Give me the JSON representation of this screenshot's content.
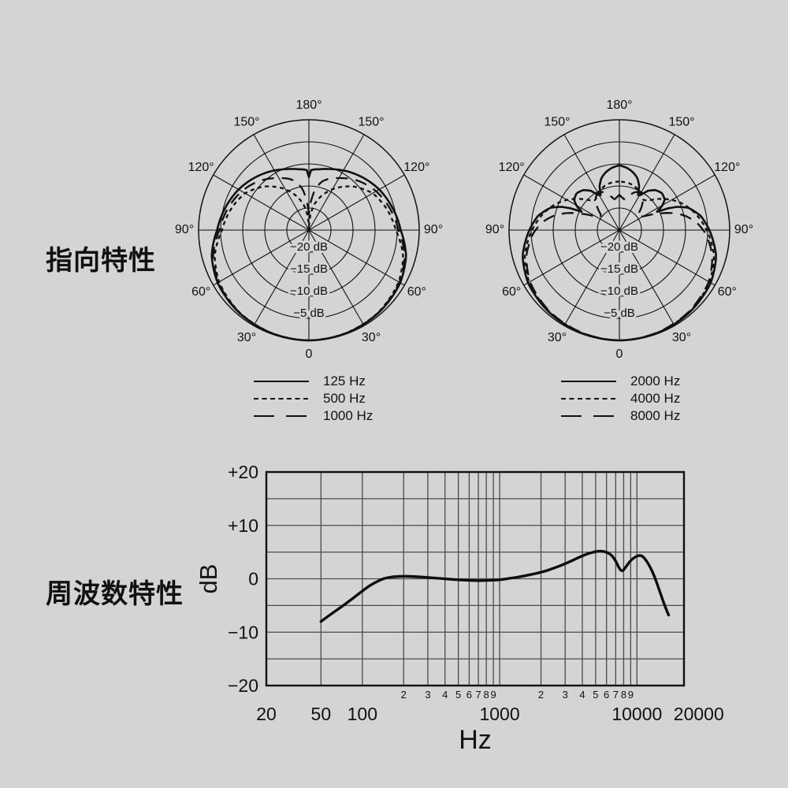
{
  "page": {
    "background": "#d4d4d5",
    "ink": "#111111"
  },
  "sections": {
    "directivity_heading": "指向特性",
    "frequency_heading": "周波数特性"
  },
  "chart_data": [
    {
      "type": "polar",
      "unit": "dB",
      "orientation": "0-degrees-at-bottom",
      "angle_labels": [
        "0",
        "30°",
        "60°",
        "90°",
        "120°",
        "150°",
        "180°"
      ],
      "grid_rings_db": [
        0,
        -5,
        -10,
        -15,
        -20
      ],
      "ring_labels": [
        {
          "db": -20,
          "label": "−20 dB"
        },
        {
          "db": -15,
          "label": "−15 dB"
        },
        {
          "db": -10,
          "label": "−10 dB"
        },
        {
          "db": -5,
          "label": "−5 dB"
        }
      ],
      "r_min_db": -25,
      "series": [
        {
          "name": "125 Hz",
          "dash": "solid",
          "points": [
            [
              0,
              0
            ],
            [
              20,
              -0.15
            ],
            [
              40,
              -0.5
            ],
            [
              60,
              -1.1
            ],
            [
              75,
              -2.2
            ],
            [
              90,
              -4.2
            ],
            [
              105,
              -5.4
            ],
            [
              120,
              -6.6
            ],
            [
              135,
              -8
            ],
            [
              150,
              -9.4
            ],
            [
              160,
              -10.3
            ],
            [
              170,
              -11
            ],
            [
              175,
              -11.2
            ],
            [
              178,
              -11.4
            ],
            [
              180,
              -13
            ]
          ]
        },
        {
          "name": "500 Hz",
          "dash": "dotted",
          "points": [
            [
              0,
              0
            ],
            [
              20,
              -0.2
            ],
            [
              40,
              -0.6
            ],
            [
              60,
              -1.5
            ],
            [
              75,
              -2.9
            ],
            [
              90,
              -5.3
            ],
            [
              105,
              -6.7
            ],
            [
              120,
              -8.3
            ],
            [
              135,
              -11
            ],
            [
              150,
              -14.3
            ],
            [
              160,
              -16.8
            ],
            [
              168,
              -19
            ],
            [
              174,
              -21.5
            ],
            [
              180,
              -25
            ]
          ]
        },
        {
          "name": "1000 Hz",
          "dash": "longdash",
          "points": [
            [
              0,
              0
            ],
            [
              20,
              -0.18
            ],
            [
              40,
              -0.55
            ],
            [
              60,
              -1.3
            ],
            [
              75,
              -2.5
            ],
            [
              90,
              -4.7
            ],
            [
              105,
              -6
            ],
            [
              120,
              -7.4
            ],
            [
              135,
              -9.2
            ],
            [
              150,
              -11.4
            ],
            [
              158,
              -12.4
            ],
            [
              165,
              -13.6
            ],
            [
              171,
              -15.5
            ],
            [
              176,
              -18.5
            ],
            [
              180,
              -21.5
            ]
          ]
        }
      ]
    },
    {
      "type": "polar",
      "unit": "dB",
      "orientation": "0-degrees-at-bottom",
      "angle_labels": [
        "0",
        "30°",
        "60°",
        "90°",
        "120°",
        "150°",
        "180°"
      ],
      "grid_rings_db": [
        0,
        -5,
        -10,
        -15,
        -20
      ],
      "ring_labels": [
        {
          "db": -20,
          "label": "−20 dB"
        },
        {
          "db": -15,
          "label": "−15 dB"
        },
        {
          "db": -10,
          "label": "−10 dB"
        },
        {
          "db": -5,
          "label": "−5 dB"
        }
      ],
      "r_min_db": -25,
      "series": [
        {
          "name": "2000 Hz",
          "dash": "solid",
          "points": [
            [
              0,
              0
            ],
            [
              20,
              -0.15
            ],
            [
              40,
              -0.5
            ],
            [
              60,
              -1.1
            ],
            [
              75,
              -2.3
            ],
            [
              90,
              -4.6
            ],
            [
              100,
              -6.3
            ],
            [
              108,
              -8.6
            ],
            [
              113,
              -11.5
            ],
            [
              116,
              -15.5
            ],
            [
              119,
              -14
            ],
            [
              124,
              -12.6
            ],
            [
              131,
              -12.2
            ],
            [
              138,
              -12.8
            ],
            [
              144,
              -14
            ],
            [
              149,
              -15.8
            ],
            [
              152,
              -16
            ],
            [
              156,
              -14
            ],
            [
              161,
              -12.5
            ],
            [
              167,
              -11.5
            ],
            [
              173,
              -10.8
            ],
            [
              180,
              -10.3
            ]
          ]
        },
        {
          "name": "4000 Hz",
          "dash": "dotted",
          "points": [
            [
              0,
              0
            ],
            [
              20,
              -0.2
            ],
            [
              40,
              -0.6
            ],
            [
              60,
              -1.4
            ],
            [
              75,
              -2.8
            ],
            [
              90,
              -5.2
            ],
            [
              102,
              -7.3
            ],
            [
              112,
              -9.3
            ],
            [
              120,
              -11.3
            ],
            [
              128,
              -13.5
            ],
            [
              135,
              -15.5
            ],
            [
              141,
              -16.3
            ],
            [
              147,
              -15.8
            ],
            [
              154,
              -15
            ],
            [
              162,
              -14.4
            ],
            [
              170,
              -14.1
            ],
            [
              180,
              -14
            ]
          ]
        },
        {
          "name": "8000 Hz",
          "dash": "longdash",
          "points": [
            [
              0,
              0
            ],
            [
              20,
              -0.25
            ],
            [
              40,
              -0.7
            ],
            [
              60,
              -1.6
            ],
            [
              75,
              -3.2
            ],
            [
              88,
              -5.5
            ],
            [
              96,
              -7.5
            ],
            [
              103,
              -10
            ],
            [
              109,
              -13
            ],
            [
              114,
              -16
            ],
            [
              119,
              -18.5
            ],
            [
              124,
              -19.8
            ],
            [
              130,
              -19.5
            ],
            [
              136,
              -17.8
            ],
            [
              143,
              -16
            ],
            [
              150,
              -15.2
            ],
            [
              157,
              -15.6
            ],
            [
              164,
              -16.8
            ],
            [
              171,
              -18
            ],
            [
              176,
              -17.5
            ],
            [
              180,
              -17
            ]
          ]
        }
      ]
    },
    {
      "type": "line",
      "xlabel": "Hz",
      "ylabel": "dB",
      "x_scale": "log",
      "xlim": [
        20,
        22000
      ],
      "ylim": [
        -20,
        20
      ],
      "grid": true,
      "y_grid_step": 5,
      "y_ticks": [
        {
          "v": 20,
          "label": "+20"
        },
        {
          "v": 10,
          "label": "+10"
        },
        {
          "v": 0,
          "label": "0"
        },
        {
          "v": -10,
          "label": "−10"
        },
        {
          "v": -20,
          "label": "−20"
        }
      ],
      "x_ticks": [
        {
          "f": 20,
          "label": "20"
        },
        {
          "f": 50,
          "label": "50"
        },
        {
          "f": 100,
          "label": "100"
        },
        {
          "f": 1000,
          "label": "1000"
        },
        {
          "f": 10000,
          "label": "10000"
        },
        {
          "f": 20000,
          "label": "20000",
          "dx": 26
        }
      ],
      "x_grid": [
        50,
        100,
        200,
        300,
        400,
        500,
        600,
        700,
        800,
        900,
        1000,
        2000,
        3000,
        4000,
        5000,
        6000,
        7000,
        8000,
        9000,
        10000
      ],
      "minor_tick_digits": [
        "2",
        "3",
        "4",
        "5",
        "6",
        "7",
        "8",
        "9"
      ],
      "minor_tick_decades": [
        100,
        1000
      ],
      "series": [
        {
          "dash": "solid",
          "points": [
            [
              50,
              -8
            ],
            [
              60,
              -6.5
            ],
            [
              70,
              -5.3
            ],
            [
              80,
              -4.2
            ],
            [
              90,
              -3.2
            ],
            [
              100,
              -2.3
            ],
            [
              110,
              -1.5
            ],
            [
              120,
              -0.9
            ],
            [
              135,
              -0.2
            ],
            [
              150,
              0.2
            ],
            [
              170,
              0.4
            ],
            [
              200,
              0.5
            ],
            [
              250,
              0.4
            ],
            [
              300,
              0.25
            ],
            [
              400,
              0
            ],
            [
              500,
              -0.2
            ],
            [
              600,
              -0.3
            ],
            [
              700,
              -0.35
            ],
            [
              850,
              -0.3
            ],
            [
              1000,
              -0.2
            ],
            [
              1200,
              0.1
            ],
            [
              1500,
              0.5
            ],
            [
              2000,
              1.2
            ],
            [
              2500,
              2
            ],
            [
              3000,
              2.8
            ],
            [
              3500,
              3.6
            ],
            [
              4000,
              4.3
            ],
            [
              4500,
              4.8
            ],
            [
              5000,
              5.1
            ],
            [
              5500,
              5.2
            ],
            [
              6000,
              5
            ],
            [
              6500,
              4.5
            ],
            [
              7000,
              3.4
            ],
            [
              7400,
              2
            ],
            [
              7800,
              1.3
            ],
            [
              8300,
              2.2
            ],
            [
              9000,
              3.5
            ],
            [
              10000,
              4.3
            ],
            [
              10800,
              4.4
            ],
            [
              11500,
              3.7
            ],
            [
              12500,
              2.2
            ],
            [
              13500,
              0.3
            ],
            [
              14500,
              -2
            ],
            [
              15500,
              -4.2
            ],
            [
              16500,
              -6
            ],
            [
              17000,
              -6.8
            ]
          ]
        }
      ]
    }
  ]
}
